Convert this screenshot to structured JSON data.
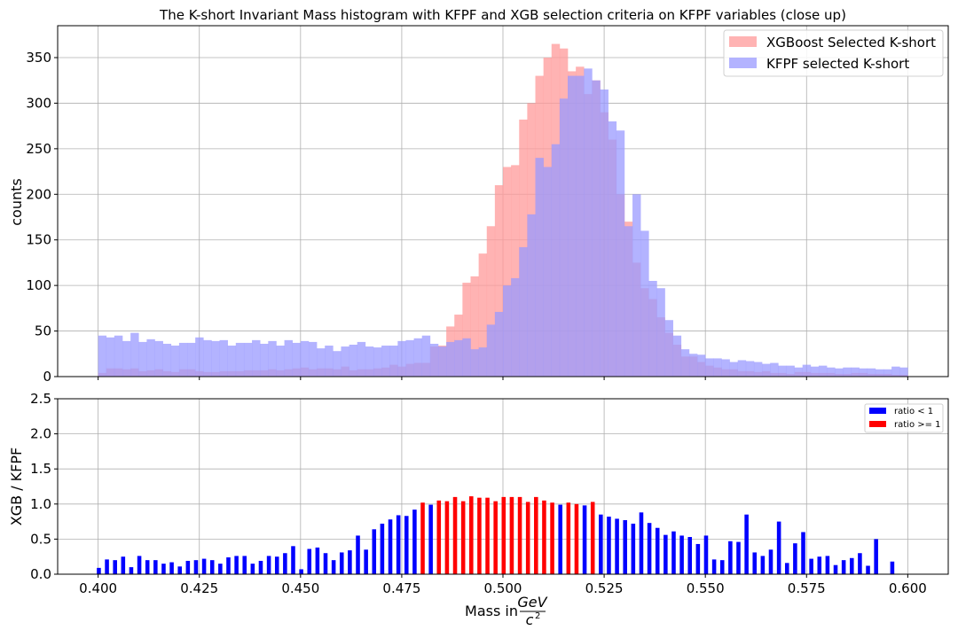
{
  "chart_data": [
    {
      "type": "bar",
      "title": "The K-short Invariant Mass histogram with KFPF and XGB selection criteria on KFPF variables (close up)",
      "xlabel": "",
      "ylabel": "counts",
      "xlim": [
        0.39,
        0.61
      ],
      "ylim": [
        0,
        385
      ],
      "x_ticks": [
        0.4,
        0.425,
        0.45,
        0.475,
        0.5,
        0.525,
        0.55,
        0.575,
        0.6
      ],
      "y_ticks": [
        0,
        50,
        100,
        150,
        200,
        250,
        300,
        350
      ],
      "grid": true,
      "legend_position": "top-right",
      "bin_start": 0.4,
      "bin_width": 0.002,
      "series": [
        {
          "name": "XGBoost Selected K-short",
          "color": "#ff9999",
          "values": [
            4,
            9,
            9,
            8,
            9,
            6,
            7,
            8,
            6,
            5,
            8,
            8,
            6,
            5,
            5,
            6,
            6,
            6,
            7,
            7,
            7,
            8,
            7,
            8,
            9,
            10,
            8,
            9,
            9,
            8,
            11,
            7,
            8,
            8,
            9,
            10,
            13,
            11,
            14,
            15,
            15,
            33,
            34,
            55,
            68,
            103,
            110,
            135,
            165,
            210,
            230,
            232,
            282,
            300,
            330,
            350,
            365,
            360,
            335,
            340,
            310,
            325,
            290,
            260,
            200,
            170,
            125,
            97,
            85,
            65,
            48,
            35,
            22,
            22,
            16,
            12,
            10,
            8,
            8,
            6,
            6,
            5,
            6,
            4,
            4,
            3,
            5,
            5,
            4,
            4,
            4,
            3,
            3,
            4,
            4,
            3,
            3,
            3,
            2,
            2
          ]
        },
        {
          "name": "KFPF selected K-short",
          "color": "#9999ff",
          "values": [
            45,
            43,
            45,
            39,
            48,
            38,
            41,
            39,
            36,
            34,
            37,
            37,
            43,
            40,
            39,
            40,
            34,
            37,
            37,
            40,
            36,
            39,
            34,
            40,
            37,
            39,
            38,
            31,
            34,
            28,
            33,
            35,
            38,
            33,
            32,
            34,
            34,
            39,
            40,
            42,
            45,
            36,
            33,
            38,
            40,
            42,
            30,
            32,
            57,
            71,
            100,
            108,
            142,
            178,
            240,
            230,
            255,
            305,
            330,
            330,
            338,
            325,
            315,
            280,
            270,
            165,
            200,
            160,
            105,
            97,
            62,
            45,
            30,
            25,
            24,
            20,
            20,
            19,
            16,
            18,
            17,
            16,
            14,
            15,
            12,
            12,
            10,
            13,
            11,
            12,
            10,
            9,
            10,
            10,
            9,
            9,
            8,
            8,
            11,
            10
          ]
        }
      ]
    },
    {
      "type": "bar",
      "title": "",
      "xlabel": "Mass in GeV / c²",
      "xlabel_parts": {
        "prefix": "Mass in",
        "numerator": "GeV",
        "denominator": "c",
        "exponent": "2"
      },
      "ylabel": "XGB / KFPF",
      "xlim": [
        0.39,
        0.61
      ],
      "ylim": [
        0,
        2.5
      ],
      "x_ticks": [
        0.4,
        0.425,
        0.45,
        0.475,
        0.5,
        0.525,
        0.55,
        0.575,
        0.6
      ],
      "y_ticks": [
        0.0,
        0.5,
        1.0,
        1.5,
        2.0,
        2.5
      ],
      "grid": true,
      "legend_position": "top-right",
      "bin_start": 0.4,
      "bin_width": 0.002,
      "threshold": 1.0,
      "series": [
        {
          "name": "ratio < 1",
          "color": "#0000ff"
        },
        {
          "name": "ratio >= 1",
          "color": "#ff0000"
        }
      ],
      "values": [
        0.09,
        0.21,
        0.2,
        0.25,
        0.1,
        0.26,
        0.2,
        0.2,
        0.15,
        0.17,
        0.11,
        0.19,
        0.2,
        0.22,
        0.2,
        0.15,
        0.24,
        0.26,
        0.26,
        0.15,
        0.19,
        0.26,
        0.25,
        0.3,
        0.4,
        0.07,
        0.36,
        0.38,
        0.3,
        0.2,
        0.31,
        0.34,
        0.55,
        0.35,
        0.64,
        0.72,
        0.78,
        0.84,
        0.83,
        0.92,
        1.02,
        0.99,
        1.05,
        1.04,
        1.1,
        1.04,
        1.11,
        1.09,
        1.09,
        1.04,
        1.1,
        1.1,
        1.1,
        1.03,
        1.1,
        1.05,
        1.02,
        0.99,
        1.02,
        1.0,
        0.98,
        1.03,
        0.85,
        0.82,
        0.79,
        0.77,
        0.72,
        0.88,
        0.73,
        0.66,
        0.56,
        0.61,
        0.55,
        0.53,
        0.43,
        0.55,
        0.21,
        0.2,
        0.47,
        0.46,
        0.85,
        0.31,
        0.26,
        0.35,
        0.75,
        0.16,
        0.44,
        0.6,
        0.22,
        0.25,
        0.26,
        0.13,
        0.2,
        0.23,
        0.3,
        0.12,
        0.5,
        0.0,
        0.18,
        0.0
      ]
    }
  ]
}
